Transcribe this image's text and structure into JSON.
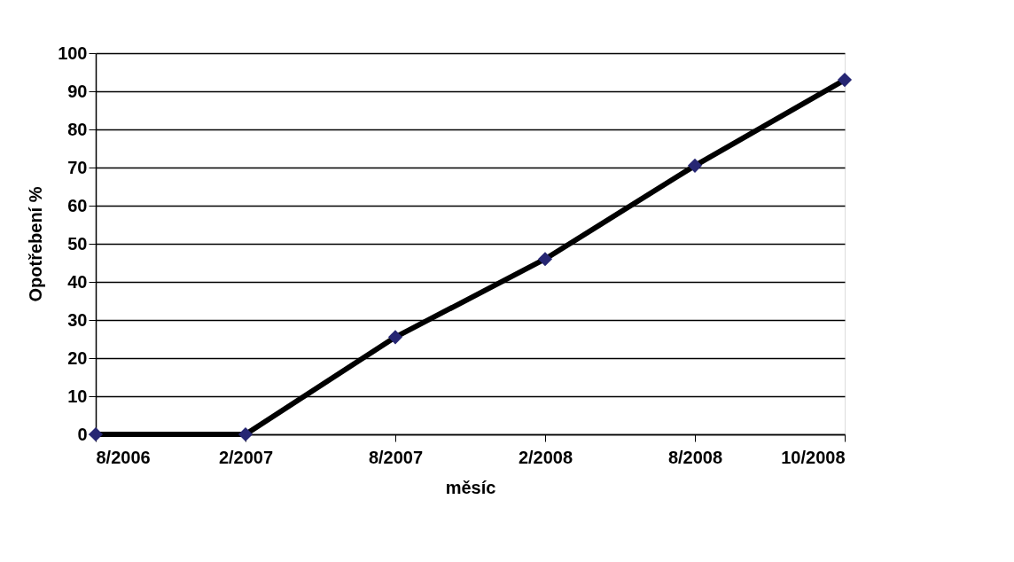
{
  "chart_data": {
    "type": "line",
    "xlabel": "měsíc",
    "ylabel": "Opotřebení %",
    "categories": [
      "8/2006",
      "2/2007",
      "8/2007",
      "2/2008",
      "8/2008",
      "10/2008"
    ],
    "series": [
      {
        "color": "#000000",
        "values": [
          0,
          0,
          25.5,
          46,
          70.5,
          93
        ]
      }
    ],
    "ylim": [
      0,
      100
    ],
    "yticks": [
      0,
      10,
      20,
      30,
      40,
      50,
      60,
      70,
      80,
      90,
      100
    ],
    "grid": "y",
    "marker": "diamond",
    "line_style": "solid"
  }
}
